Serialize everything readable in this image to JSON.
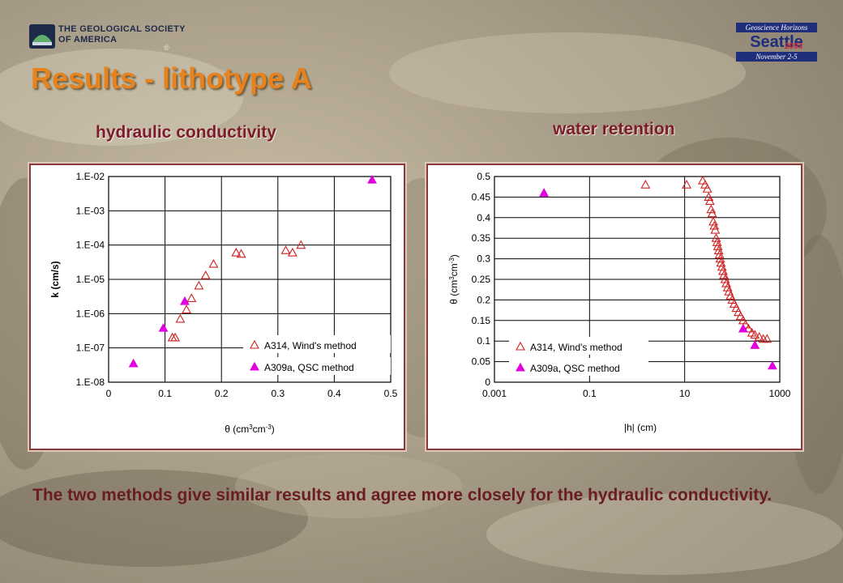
{
  "header": {
    "org_line1": "THE GEOLOGICAL SOCIETY",
    "org_line2": "OF AMERICA",
    "org_mark": "®",
    "event_line1": "Geoscience Horizons",
    "event_city": "Seattle",
    "event_year": "2003",
    "event_dates": "November 2-5"
  },
  "slide": {
    "title": "Results - lithotype A",
    "subtitle_left": "hydraulic conductivity",
    "subtitle_right": "water retention",
    "conclusion": "The two methods give similar results and agree more closely for the hydraulic conductivity."
  },
  "colors": {
    "title": "#e8821c",
    "subtitle": "#7a1c2c",
    "series_a314": "#d02020",
    "series_a309a": "#e000e0"
  },
  "chart_data": [
    {
      "type": "scatter",
      "x_scale": "linear",
      "y_scale": "log",
      "grid": true,
      "legend_position": "bottom-right",
      "ylabel": "k (cm/s)",
      "xlabel_parts": [
        "θ (cm",
        "3",
        "cm",
        "-3",
        ")"
      ],
      "xlim": [
        0,
        0.5
      ],
      "ylim": [
        1e-08,
        0.01
      ],
      "x_ticks": [
        0,
        0.1,
        0.2,
        0.3,
        0.4,
        0.5
      ],
      "x_tick_labels": [
        "0",
        "0.1",
        "0.2",
        "0.3",
        "0.4",
        "0.5"
      ],
      "y_ticks": [
        1e-08,
        1e-07,
        1e-06,
        1e-05,
        0.0001,
        0.001,
        0.01
      ],
      "y_tick_labels": [
        "1.E-08",
        "1.E-07",
        "1.E-06",
        "1.E-05",
        "1.E-04",
        "1.E-03",
        "1.E-02"
      ],
      "series": [
        {
          "name": "A314, Wind's method",
          "marker": "triangle-open",
          "color": "#d02020",
          "points": [
            [
              0.113,
              2e-07
            ],
            [
              0.118,
              2e-07
            ],
            [
              0.127,
              7e-07
            ],
            [
              0.138,
              1.3e-06
            ],
            [
              0.147,
              2.8e-06
            ],
            [
              0.16,
              6.5e-06
            ],
            [
              0.172,
              1.3e-05
            ],
            [
              0.186,
              2.8e-05
            ],
            [
              0.226,
              6e-05
            ],
            [
              0.235,
              5.5e-05
            ],
            [
              0.314,
              7e-05
            ],
            [
              0.326,
              6e-05
            ],
            [
              0.341,
              0.0001
            ]
          ]
        },
        {
          "name": "A309a, QSC method",
          "marker": "triangle-filled",
          "color": "#e000e0",
          "points": [
            [
              0.044,
              3.5e-08
            ],
            [
              0.097,
              3.8e-07
            ],
            [
              0.135,
              2.3e-06
            ],
            [
              0.467,
              0.008
            ]
          ]
        }
      ]
    },
    {
      "type": "scatter",
      "x_scale": "log",
      "y_scale": "linear",
      "grid": true,
      "legend_position": "bottom-left",
      "xlabel": "|h| (cm)",
      "ylabel_parts": [
        "θ (cm",
        "3",
        "cm",
        "-3",
        ")"
      ],
      "xlim": [
        0.001,
        1000
      ],
      "ylim": [
        0,
        0.5
      ],
      "x_ticks": [
        0.001,
        0.1,
        10,
        1000
      ],
      "x_tick_labels": [
        "0.001",
        "0.1",
        "10",
        "1000"
      ],
      "y_ticks": [
        0,
        0.05,
        0.1,
        0.15,
        0.2,
        0.25,
        0.3,
        0.35,
        0.4,
        0.45,
        0.5
      ],
      "y_tick_labels": [
        "0",
        "0.05",
        "0.1",
        "0.15",
        "0.2",
        "0.25",
        "0.3",
        "0.35",
        "0.4",
        "0.45",
        "0.5"
      ],
      "series": [
        {
          "name": "A314, Wind's method",
          "marker": "triangle-open",
          "color": "#d02020",
          "points": [
            [
              1.5,
              0.48
            ],
            [
              11,
              0.48
            ],
            [
              24,
              0.49
            ],
            [
              27,
              0.48
            ],
            [
              30,
              0.47
            ],
            [
              32,
              0.45
            ],
            [
              34,
              0.44
            ],
            [
              36,
              0.42
            ],
            [
              38,
              0.41
            ],
            [
              40,
              0.39
            ],
            [
              42,
              0.38
            ],
            [
              44,
              0.37
            ],
            [
              46,
              0.35
            ],
            [
              48,
              0.34
            ],
            [
              50,
              0.33
            ],
            [
              52,
              0.32
            ],
            [
              54,
              0.31
            ],
            [
              56,
              0.3
            ],
            [
              58,
              0.29
            ],
            [
              61,
              0.28
            ],
            [
              64,
              0.27
            ],
            [
              67,
              0.26
            ],
            [
              71,
              0.25
            ],
            [
              75,
              0.24
            ],
            [
              80,
              0.23
            ],
            [
              85,
              0.22
            ],
            [
              92,
              0.21
            ],
            [
              100,
              0.2
            ],
            [
              110,
              0.19
            ],
            [
              122,
              0.18
            ],
            [
              135,
              0.17
            ],
            [
              150,
              0.16
            ],
            [
              170,
              0.15
            ],
            [
              190,
              0.14
            ],
            [
              220,
              0.13
            ],
            [
              260,
              0.12
            ],
            [
              300,
              0.115
            ],
            [
              370,
              0.11
            ],
            [
              450,
              0.105
            ],
            [
              540,
              0.105
            ]
          ]
        },
        {
          "name": "A309a, QSC method",
          "marker": "triangle-filled",
          "color": "#e000e0",
          "points": [
            [
              0.011,
              0.46
            ],
            [
              170,
              0.13
            ],
            [
              300,
              0.09
            ],
            [
              700,
              0.04
            ]
          ]
        }
      ]
    }
  ]
}
